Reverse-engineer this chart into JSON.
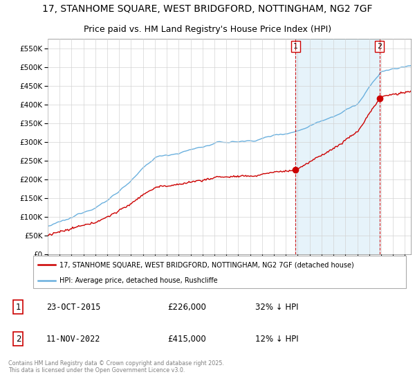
{
  "title_line1": "17, STANHOME SQUARE, WEST BRIDGFORD, NOTTINGHAM, NG2 7GF",
  "title_line2": "Price paid vs. HM Land Registry's House Price Index (HPI)",
  "legend_label1": "17, STANHOME SQUARE, WEST BRIDGFORD, NOTTINGHAM, NG2 7GF (detached house)",
  "legend_label2": "HPI: Average price, detached house, Rushcliffe",
  "annotation1_date": "23-OCT-2015",
  "annotation1_price": "£226,000",
  "annotation1_hpi": "32% ↓ HPI",
  "annotation2_date": "11-NOV-2022",
  "annotation2_price": "£415,000",
  "annotation2_hpi": "12% ↓ HPI",
  "footer": "Contains HM Land Registry data © Crown copyright and database right 2025.\nThis data is licensed under the Open Government Licence v3.0.",
  "hpi_color": "#6ab0de",
  "hpi_fill_color": "#dceef8",
  "price_color": "#cc0000",
  "vline_color": "#cc0000",
  "sale1_date": 2015.82,
  "sale1_price": 226000,
  "sale2_date": 2022.87,
  "sale2_price": 415000,
  "ylim": [
    0,
    575000
  ],
  "xlim_start": 1995.0,
  "xlim_end": 2025.5
}
